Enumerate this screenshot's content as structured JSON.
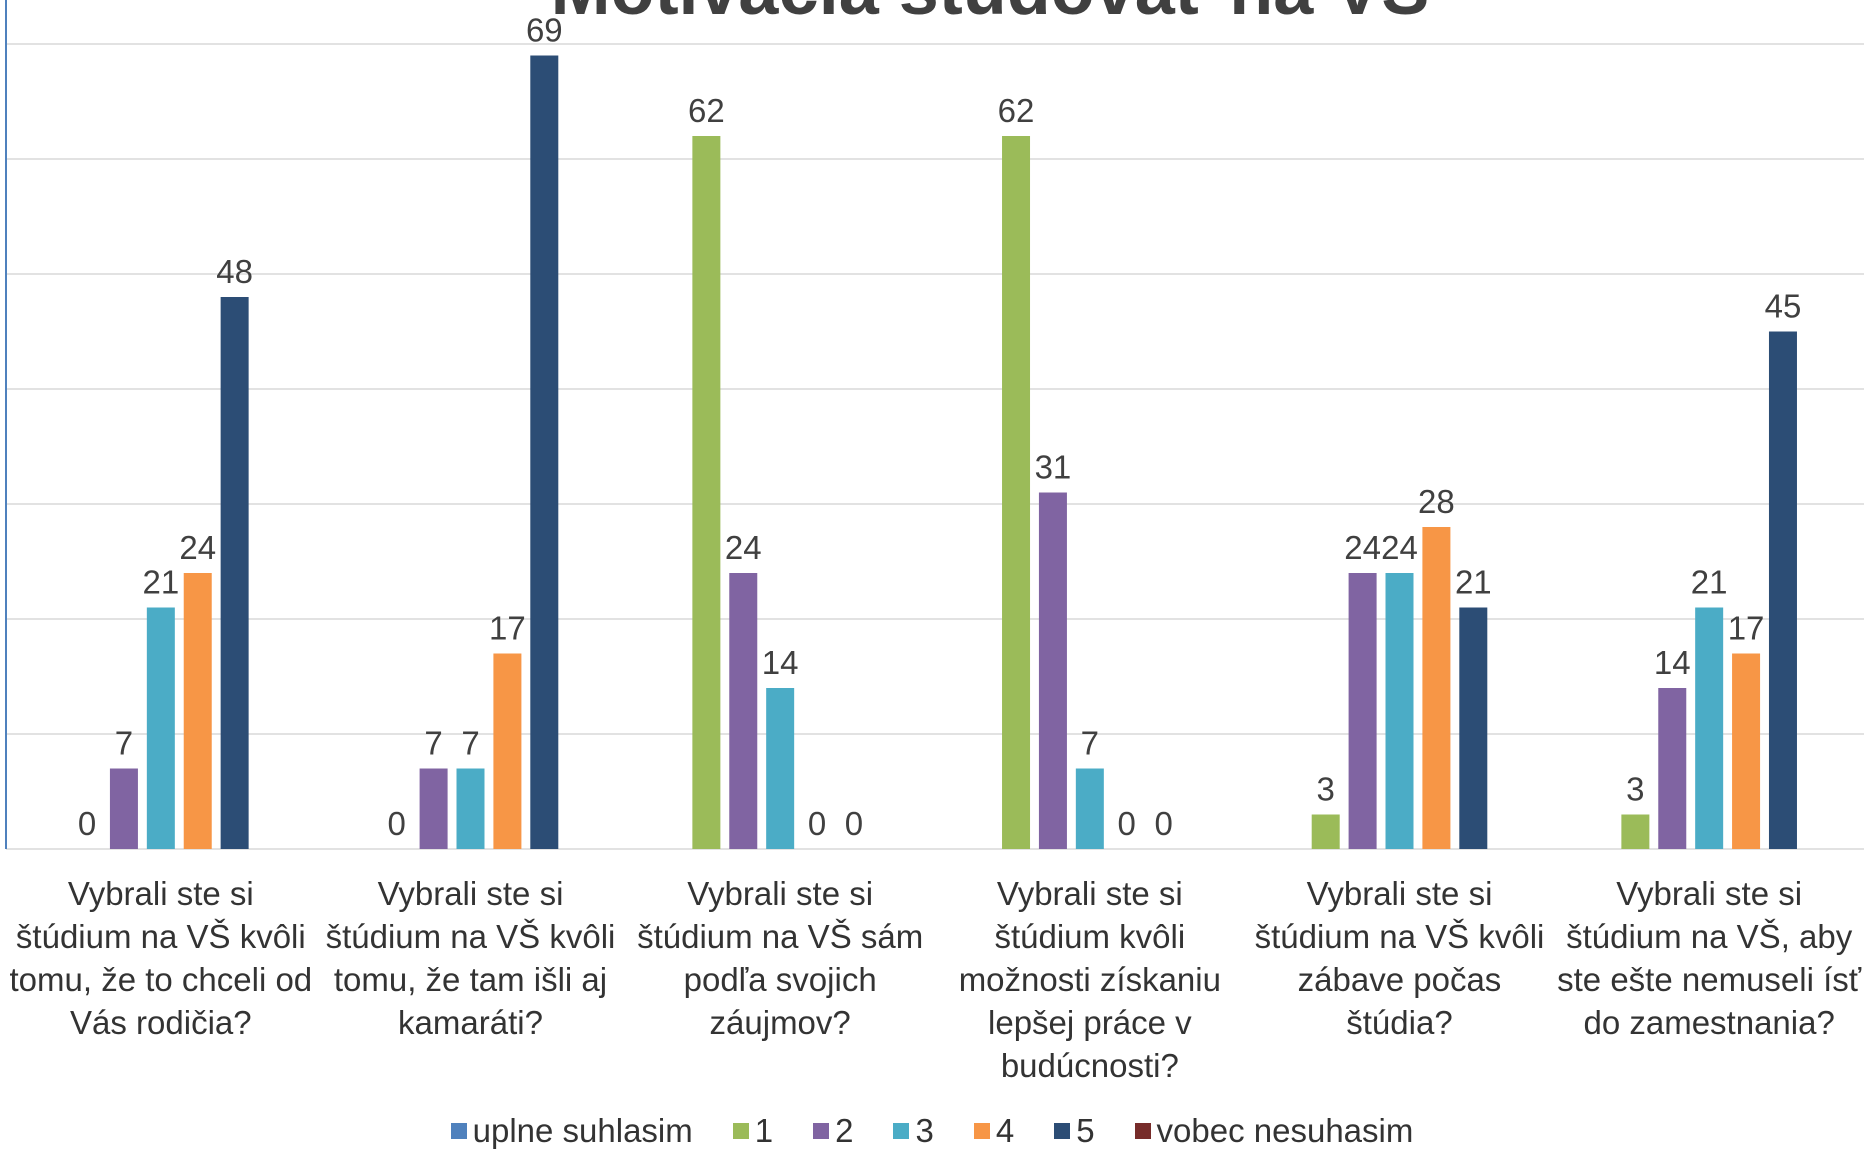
{
  "chart_data": {
    "type": "bar",
    "title": "Motivácia študovať na VŠ",
    "categories": [
      "Vybrali ste si štúdium na VŠ kvôli tomu, že to chceli od Vás rodičia?",
      "Vybrali ste si štúdium na VŠ kvôli tomu, že tam išli aj kamaráti?",
      "Vybrali ste si štúdium na VŠ sám podľa svojich záujmov?",
      "Vybrali ste si štúdium kvôli možnosti získaniu lepšej práce v budúcnosti?",
      "Vybrali ste si štúdium na VŠ kvôli zábave počas štúdia?",
      "Vybrali ste si štúdium na VŠ, aby ste ešte nemuseli ísť do zamestnania?"
    ],
    "series": [
      {
        "name": "uplne suhlasim",
        "color": "#4f81bd",
        "values": [
          null,
          null,
          null,
          null,
          null,
          null
        ]
      },
      {
        "name": "1",
        "color": "#9bbb59",
        "values": [
          0,
          0,
          62,
          62,
          3,
          3
        ]
      },
      {
        "name": "2",
        "color": "#8064a2",
        "values": [
          7,
          7,
          24,
          31,
          24,
          14
        ]
      },
      {
        "name": "3",
        "color": "#4bacc6",
        "values": [
          21,
          7,
          14,
          7,
          24,
          21
        ]
      },
      {
        "name": "4",
        "color": "#f79646",
        "values": [
          24,
          17,
          0,
          0,
          28,
          17
        ]
      },
      {
        "name": "5",
        "color": "#2c4d75",
        "values": [
          48,
          69,
          0,
          0,
          21,
          45
        ]
      },
      {
        "name": "vobec nesuhasim",
        "color": "#772c2a",
        "values": [
          null,
          null,
          null,
          null,
          null,
          null
        ]
      }
    ],
    "ylim": [
      0,
      70
    ],
    "yticks": [
      0,
      10,
      20,
      30,
      40,
      50,
      60,
      70
    ],
    "grid": true,
    "legend": "bottom"
  }
}
